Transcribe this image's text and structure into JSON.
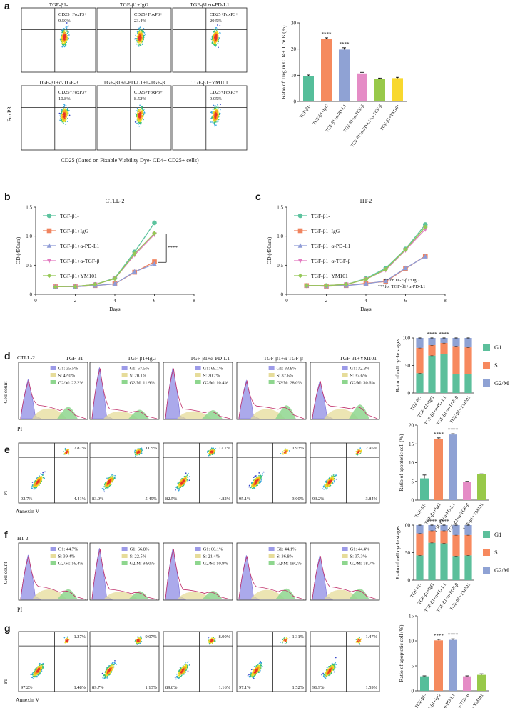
{
  "figure": {
    "panel_letters": [
      "a",
      "b",
      "c",
      "d",
      "e",
      "f",
      "g"
    ],
    "colors": {
      "teal": "#55BE9A",
      "orange": "#F58A5E",
      "lavender": "#8FA2D4",
      "pink": "#E58CC6",
      "lime": "#98C94A",
      "yellow": "#F8D82E",
      "line_teal": "#5CC39E",
      "line_orange": "#F0835F",
      "line_purple": "#8E9BD6",
      "line_pink": "#E37BC0",
      "line_green": "#95C856",
      "g1": "#5CBF9B",
      "s": "#F7895E",
      "g2m": "#8FA2D4"
    }
  },
  "panel_a": {
    "groups": [
      {
        "title": "TGF-β1-",
        "gate": "CD25+FoxP3+",
        "pct": "9.50%"
      },
      {
        "title": "TGF-β1+IgG",
        "gate": "CD25+FoxP3+",
        "pct": "23.4%"
      },
      {
        "title": "TGF-β1+α-PD-L1",
        "gate": "CD25+FoxP3+",
        "pct": "20.5%"
      },
      {
        "title": "TGF-β1+α-TGF-β",
        "gate": "CD25+FoxP3+",
        "pct": "10.8%"
      },
      {
        "title": "TGF-β1+α-PD-L1+α-TGF-β",
        "gate": "CD25+FoxP3+",
        "pct": "8.52%"
      },
      {
        "title": "TGF-β1+YM101",
        "gate": "CD25+FoxP3+",
        "pct": "9.05%"
      }
    ],
    "y_axis": "FoxP3",
    "x_axis": "CD25 (Gated on Fixable Viability Dye- CD4+ CD25+ cells)"
  },
  "chart_data": [
    {
      "id": "a_bar",
      "type": "bar",
      "title": "",
      "ylabel": "Ratio of Treg in CD4+ T cells (%)",
      "categories": [
        "TGF-β1-",
        "TGF-β1+IgG",
        "TGF-β1+α-PD-L1",
        "TGF-β1+α-TGF-β",
        "TGF-β1+α-PD-L1+α-TGF-β",
        "TGF-β1+YM101"
      ],
      "values": [
        9.7,
        23.9,
        19.8,
        10.7,
        8.7,
        8.9
      ],
      "errors": [
        0.4,
        0.4,
        0.7,
        0.4,
        0.2,
        0.3
      ],
      "significance": [
        "",
        "****",
        "****",
        "",
        "",
        ""
      ],
      "ylim": [
        0,
        30
      ],
      "yticks": [
        0,
        10,
        20,
        30
      ]
    },
    {
      "id": "b_line",
      "type": "line",
      "title": "CTLL-2",
      "xlabel": "Days",
      "ylabel": "OD (450nm)",
      "x": [
        1,
        2,
        3,
        4,
        5,
        6
      ],
      "series": [
        {
          "name": "TGF-β1-",
          "values": [
            0.13,
            0.135,
            0.17,
            0.28,
            0.73,
            1.23
          ]
        },
        {
          "name": "TGF-β1+IgG",
          "values": [
            0.13,
            0.13,
            0.15,
            0.18,
            0.38,
            0.56
          ]
        },
        {
          "name": "TGF-β1+α-PD-L1",
          "values": [
            0.13,
            0.13,
            0.15,
            0.18,
            0.39,
            0.52
          ]
        },
        {
          "name": "TGF-β1+α-TGF-β",
          "values": [
            0.13,
            0.135,
            0.17,
            0.27,
            0.68,
            1.03
          ]
        },
        {
          "name": "TGF-β1+YM101",
          "values": [
            0.13,
            0.135,
            0.17,
            0.27,
            0.7,
            1.05
          ]
        }
      ],
      "xlim": [
        0,
        8
      ],
      "ylim": [
        0,
        1.5
      ],
      "xticks": [
        0,
        2,
        4,
        6,
        8
      ],
      "yticks": [
        0,
        0.5,
        1.0,
        1.5
      ],
      "ytick_labels": [
        "0",
        "0.5",
        "1.0",
        "1.5"
      ],
      "annotations": [
        "****"
      ]
    },
    {
      "id": "c_line",
      "type": "line",
      "title": "HT-2",
      "xlabel": "Days",
      "ylabel": "OD (450nm)",
      "x": [
        1,
        2,
        3,
        4,
        5,
        6,
        7
      ],
      "series": [
        {
          "name": "TGF-β1-",
          "values": [
            0.15,
            0.15,
            0.17,
            0.27,
            0.45,
            0.78,
            1.2
          ]
        },
        {
          "name": "TGF-β1+IgG",
          "values": [
            0.15,
            0.14,
            0.15,
            0.19,
            0.22,
            0.44,
            0.66
          ]
        },
        {
          "name": "TGF-β1+α-PD-L1",
          "values": [
            0.15,
            0.14,
            0.15,
            0.18,
            0.23,
            0.45,
            0.65
          ]
        },
        {
          "name": "TGF-β1+α-TGF-β",
          "values": [
            0.15,
            0.15,
            0.17,
            0.26,
            0.42,
            0.76,
            1.12
          ]
        },
        {
          "name": "TGF-β1+YM101",
          "values": [
            0.15,
            0.15,
            0.17,
            0.26,
            0.43,
            0.77,
            1.16
          ]
        }
      ],
      "xlim": [
        0,
        8
      ],
      "ylim": [
        0,
        1.5
      ],
      "xticks": [
        0,
        2,
        4,
        6,
        8
      ],
      "yticks": [
        0,
        0.5,
        1.0,
        1.5
      ],
      "ytick_labels": [
        "0",
        "0.5",
        "1.0",
        "1.5"
      ],
      "annotations": [
        "**for TGF-β1+IgG",
        "***for TGF-β1+α-PD-L1"
      ]
    },
    {
      "id": "d_stack",
      "type": "bar",
      "stacked": true,
      "ylabel": "Ratio of cell cycle stages",
      "categories": [
        "TGF-β1-",
        "TGF-β1+IgG",
        "TGF-β1+α-PD-L1",
        "TGF-β1+α-TGF-β",
        "TGF-β1+YM101"
      ],
      "series": [
        {
          "name": "G1",
          "values": [
            36,
            68,
            71,
            35,
            35
          ]
        },
        {
          "name": "S",
          "values": [
            46,
            19,
            20,
            49,
            48
          ]
        },
        {
          "name": "G2/M",
          "values": [
            18,
            13,
            9,
            16,
            17
          ]
        }
      ],
      "significance": [
        "",
        "****",
        "****",
        "",
        ""
      ],
      "ylim": [
        0,
        100
      ],
      "yticks": [
        0,
        50,
        100
      ]
    },
    {
      "id": "e_bar",
      "type": "bar",
      "ylabel": "Ratio of apoptotic cell (%)",
      "categories": [
        "TGF-β1-",
        "TGF-β1+IgG",
        "TGF-β1+α-PD-L1",
        "TGF-β1+α-TGF-β",
        "TGF-β1+YM101"
      ],
      "values": [
        5.8,
        16.3,
        17.5,
        4.9,
        6.9
      ],
      "errors": [
        0.9,
        0.3,
        0.2,
        0.1,
        0.1
      ],
      "significance": [
        "",
        "****",
        "****",
        "",
        ""
      ],
      "ylim": [
        0,
        20
      ],
      "yticks": [
        0,
        5,
        10,
        15,
        20
      ]
    },
    {
      "id": "f_stack",
      "type": "bar",
      "stacked": true,
      "ylabel": "Ratio of cell cycle stages",
      "categories": [
        "TGF-β1-",
        "TGF-β1+IgG",
        "TGF-β1+α-PD-L1",
        "TGF-β1+α-TGF-β",
        "TGF-β1+YM101"
      ],
      "series": [
        {
          "name": "G1",
          "values": [
            45,
            68,
            67,
            44,
            45
          ]
        },
        {
          "name": "S",
          "values": [
            40,
            22,
            23,
            38,
            37
          ]
        },
        {
          "name": "G2/M",
          "values": [
            15,
            10,
            10,
            18,
            18
          ]
        }
      ],
      "significance": [
        "",
        "****",
        "****",
        "",
        ""
      ],
      "ylim": [
        0,
        100
      ],
      "yticks": [
        0,
        50,
        100
      ]
    },
    {
      "id": "g_bar",
      "type": "bar",
      "ylabel": "Ratio of apoptotic cell (%)",
      "categories": [
        "TGF-β1-",
        "TGF-β1+IgG",
        "TGF-β1+α-PD-L1",
        "TGF-β1+α-TGF-β",
        "TGF-β1+YM101"
      ],
      "values": [
        2.9,
        10.1,
        10.2,
        2.9,
        3.2
      ],
      "errors": [
        0.1,
        0.2,
        0.2,
        0.1,
        0.2
      ],
      "significance": [
        "",
        "****",
        "****",
        "",
        ""
      ],
      "ylim": [
        0,
        15
      ],
      "yticks": [
        0,
        5,
        10,
        15
      ]
    }
  ],
  "panel_d": {
    "cell_line": "CTLL-2",
    "titles": [
      "TGF-β1-",
      "TGF-β1+IgG",
      "TGF-β1+α-PD-L1",
      "TGF-β1+α-TGF-β",
      "TGF-β1+YM101"
    ],
    "stats": [
      [
        "G1: 35.5%",
        "S: 42.0%",
        "G2/M: 22.2%"
      ],
      [
        "G1: 67.5%",
        "S: 20.1%",
        "G2/M: 11.9%"
      ],
      [
        "G1: 69.1%",
        "S: 20.7%",
        "G2/M: 10.4%"
      ],
      [
        "G1: 33.8%",
        "S: 37.6%",
        "G2/M: 28.0%"
      ],
      [
        "G1: 32.8%",
        "S: 37.6%",
        "G2/M: 30.6%"
      ]
    ],
    "y_axis": "Cell count",
    "x_axis": "PI"
  },
  "panel_e": {
    "quadrants": [
      {
        "ul": "",
        "ur": "2.87%",
        "ll": "92.7%",
        "lr": "4.41%"
      },
      {
        "ul": "",
        "ur": "11.5%",
        "ll": "83.0%",
        "lr": "5.49%"
      },
      {
        "ul": "",
        "ur": "12.7%",
        "ll": "82.5%",
        "lr": "4.82%"
      },
      {
        "ul": "",
        "ur": "1.93%",
        "ll": "95.1%",
        "lr": "3.00%"
      },
      {
        "ul": "",
        "ur": "2.95%",
        "ll": "93.2%",
        "lr": "3.84%"
      }
    ],
    "y_axis": "PI",
    "x_axis": "Annexin V"
  },
  "panel_f": {
    "cell_line": "HT-2",
    "stats": [
      [
        "G1: 44.7%",
        "S: 39.4%",
        "G2/M: 16.4%"
      ],
      [
        "G1: 66.8%",
        "S: 22.5%",
        "G2/M: 9.80%"
      ],
      [
        "G1: 66.1%",
        "S: 21.4%",
        "G2/M: 10.9%"
      ],
      [
        "G1: 44.1%",
        "S: 36.8%",
        "G2/M: 19.2%"
      ],
      [
        "G1: 44.4%",
        "S: 37.3%",
        "G2/M: 18.7%"
      ]
    ],
    "y_axis": "Cell count",
    "x_axis": "PI"
  },
  "panel_g": {
    "quadrants": [
      {
        "ur": "1.27%",
        "ll": "97.2%",
        "lr": "1.48%"
      },
      {
        "ur": "9.07%",
        "ll": "89.7%",
        "lr": "1.13%"
      },
      {
        "ur": "8.90%",
        "ll": "89.8%",
        "lr": "1.16%"
      },
      {
        "ur": "1.31%",
        "ll": "97.1%",
        "lr": "1.52%"
      },
      {
        "ur": "1.47%",
        "ll": "96.9%",
        "lr": "1.59%"
      }
    ],
    "y_axis": "PI",
    "x_axis": "Annexin V"
  }
}
